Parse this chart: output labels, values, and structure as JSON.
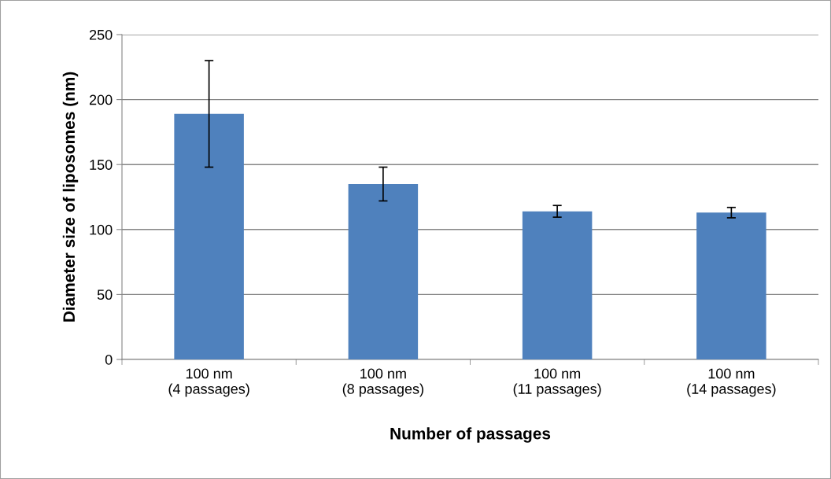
{
  "chart_data": {
    "type": "bar",
    "xlabel": "Number of passages",
    "ylabel": "Diameter size of liposomes (nm)",
    "categories": [
      "100 nm\n(4 passages)",
      "100 nm\n(8 passages)",
      "100 nm\n(11 passages)",
      "100 nm\n(14 passages)"
    ],
    "values": [
      189,
      135,
      114,
      113
    ],
    "errors": [
      41,
      13,
      4.5,
      4
    ],
    "color": "#4f81bd",
    "ylim": [
      0,
      250
    ],
    "yticks": [
      0,
      50,
      100,
      150,
      200,
      250
    ],
    "grid": "y",
    "legend": false
  }
}
